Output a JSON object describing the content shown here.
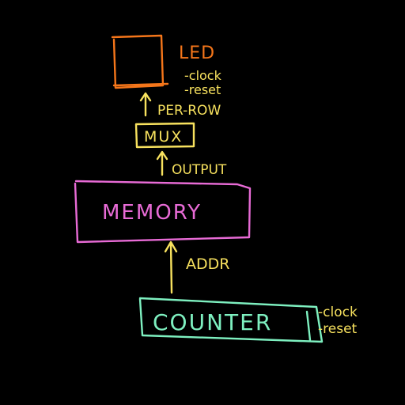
{
  "colors": {
    "background": "#000000",
    "led": "#f5761a",
    "yellow": "#f7e15e",
    "memory": "#e86bd6",
    "counter": "#7ef0c0"
  },
  "led": {
    "label": "LED",
    "signals": [
      "-clock",
      "-reset"
    ]
  },
  "arrows": {
    "per_row": "PER-ROW",
    "output": "OUTPUT",
    "addr": "ADDR"
  },
  "mux": {
    "label": "MUX"
  },
  "memory": {
    "label": "MEMORY"
  },
  "counter": {
    "label": "COUNTER",
    "signals": [
      "-clock",
      "-reset"
    ]
  }
}
